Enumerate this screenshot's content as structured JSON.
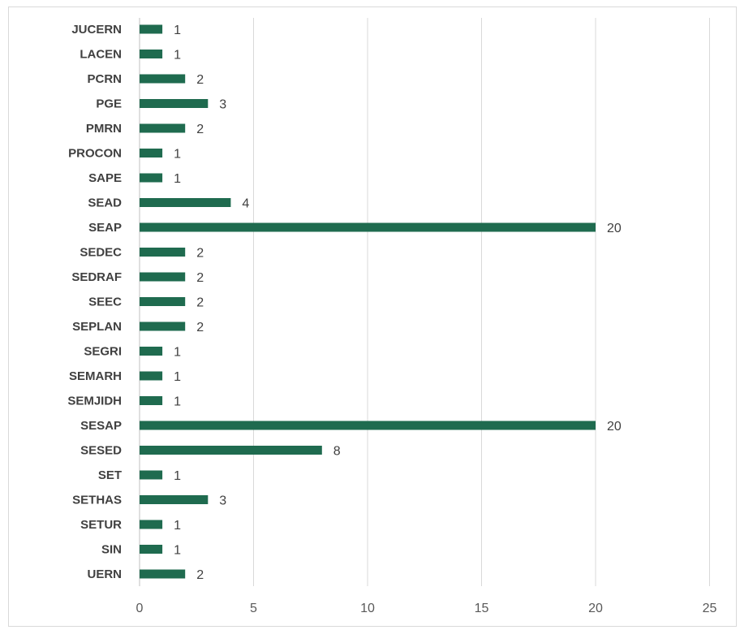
{
  "chart_data": {
    "type": "bar",
    "orientation": "horizontal",
    "title": "",
    "xlabel": "",
    "ylabel": "",
    "categories": [
      "JUCERN",
      "LACEN",
      "PCRN",
      "PGE",
      "PMRN",
      "PROCON",
      "SAPE",
      "SEAD",
      "SEAP",
      "SEDEC",
      "SEDRAF",
      "SEEC",
      "SEPLAN",
      "SEGRI",
      "SEMARH",
      "SEMJIDH",
      "SESAP",
      "SESED",
      "SET",
      "SETHAS",
      "SETUR",
      "SIN",
      "UERN"
    ],
    "values": [
      1,
      1,
      2,
      3,
      2,
      1,
      1,
      4,
      20,
      2,
      2,
      2,
      2,
      1,
      1,
      1,
      20,
      8,
      1,
      3,
      1,
      1,
      2
    ],
    "xlim": [
      0,
      25
    ],
    "xticks": [
      0,
      5,
      10,
      15,
      20,
      25
    ],
    "grid": "vertical",
    "legend": "none",
    "bar_color": "#1f6b4f"
  }
}
